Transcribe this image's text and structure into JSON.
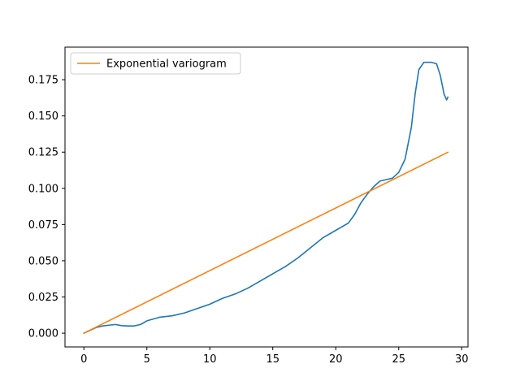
{
  "chart_data": {
    "type": "line",
    "title": "",
    "xlabel": "",
    "ylabel": "",
    "xlim": [
      -1.5,
      30.5
    ],
    "ylim": [
      -0.0095,
      0.1975
    ],
    "xticks": [
      0,
      5,
      10,
      15,
      20,
      25,
      30
    ],
    "xtick_labels": [
      "0",
      "5",
      "10",
      "15",
      "20",
      "25",
      "30"
    ],
    "yticks": [
      0.0,
      0.025,
      0.05,
      0.075,
      0.1,
      0.125,
      0.15,
      0.175
    ],
    "ytick_labels": [
      "0.000",
      "0.025",
      "0.050",
      "0.075",
      "0.100",
      "0.125",
      "0.150",
      "0.175"
    ],
    "grid": false,
    "legend": {
      "placement": "upper-left",
      "entries": [
        "Exponential variogram"
      ]
    },
    "series": [
      {
        "color": "#1f77b4",
        "x": [
          0,
          0.5,
          1,
          1.5,
          2,
          2.5,
          3,
          3.5,
          4,
          4.5,
          5,
          6,
          7,
          8,
          9,
          10,
          11,
          12,
          13,
          14,
          15,
          16,
          17,
          18,
          19,
          20,
          21,
          21.5,
          22,
          22.5,
          23,
          23.5,
          24,
          24.5,
          25,
          25.5,
          26,
          26.3,
          26.6,
          27,
          27.3,
          27.6,
          28,
          28.3,
          28.6,
          28.8,
          28.9
        ],
        "y": [
          0.0,
          0.002,
          0.004,
          0.005,
          0.0055,
          0.006,
          0.0052,
          0.005,
          0.005,
          0.006,
          0.0085,
          0.011,
          0.012,
          0.014,
          0.017,
          0.02,
          0.024,
          0.027,
          0.031,
          0.036,
          0.041,
          0.046,
          0.052,
          0.059,
          0.066,
          0.071,
          0.076,
          0.082,
          0.09,
          0.096,
          0.101,
          0.105,
          0.106,
          0.107,
          0.111,
          0.12,
          0.142,
          0.165,
          0.182,
          0.187,
          0.187,
          0.187,
          0.186,
          0.178,
          0.165,
          0.161,
          0.163
        ]
      },
      {
        "name": "Exponential variogram",
        "color": "#ff7f0e",
        "x": [
          0,
          28.9
        ],
        "y": [
          0.0,
          0.1249
        ]
      }
    ]
  }
}
